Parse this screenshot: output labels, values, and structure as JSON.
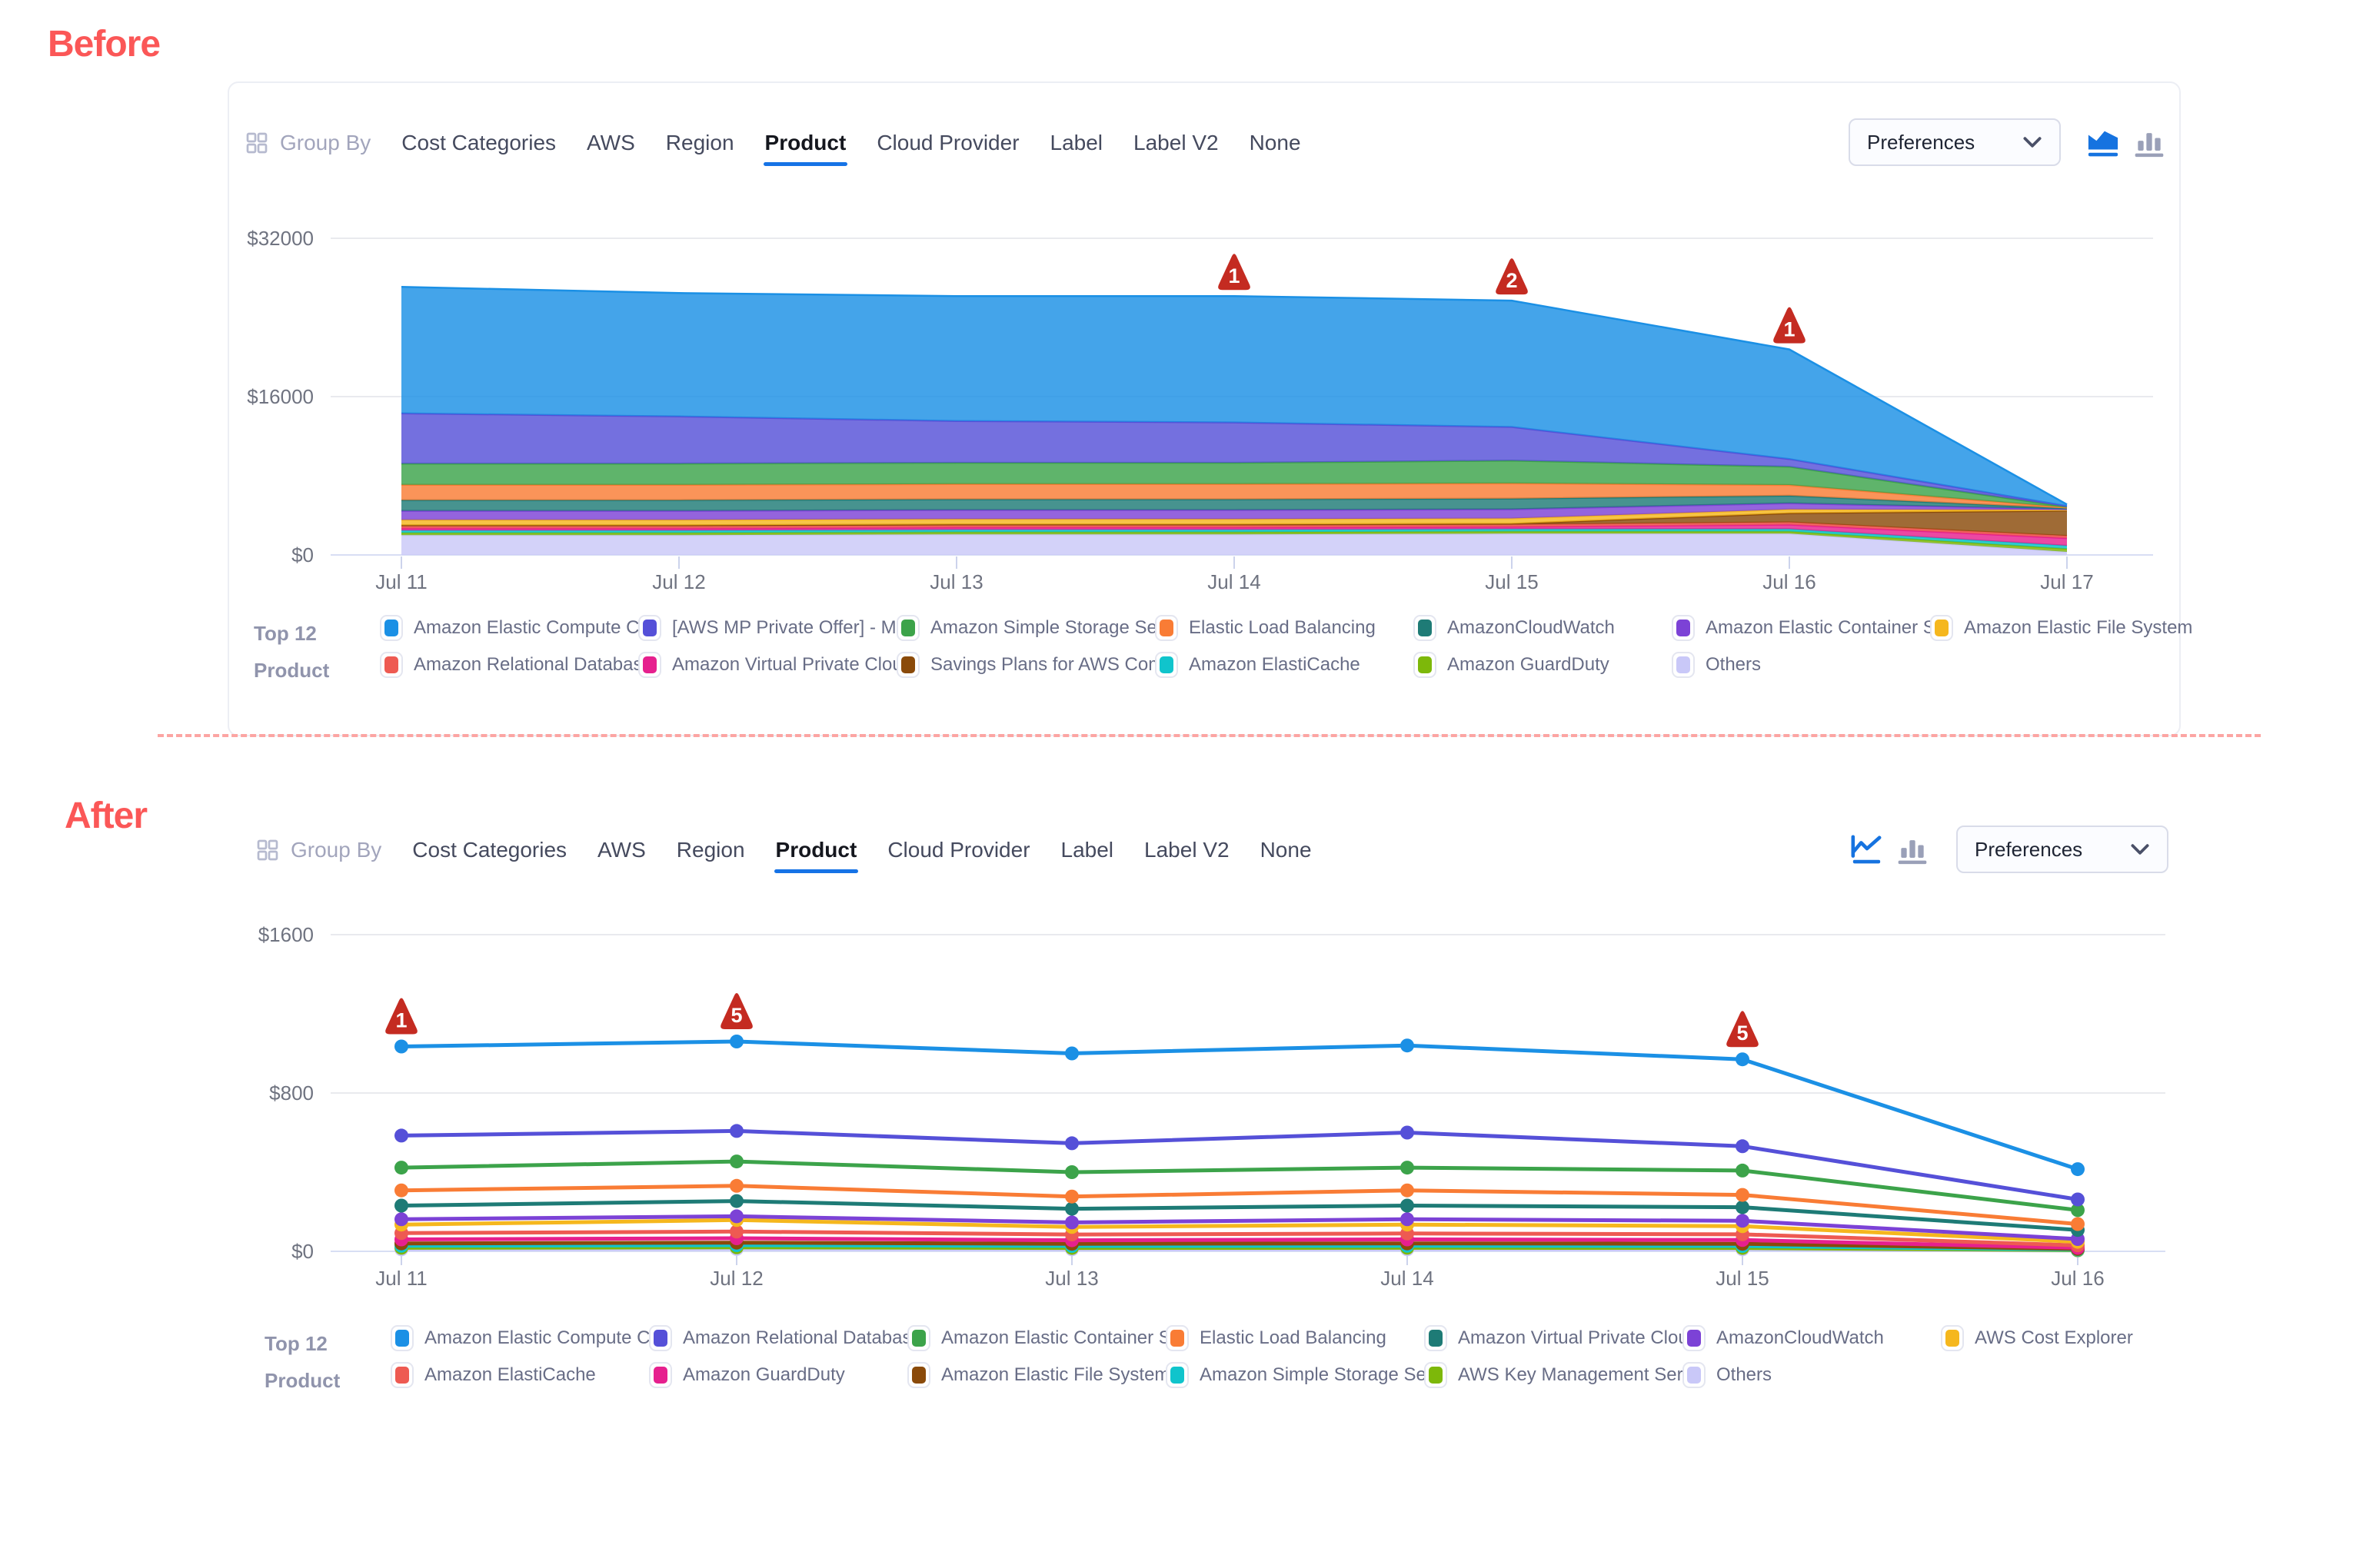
{
  "page": {
    "before_label": "Before",
    "after_label": "After",
    "accent_color": "#fb5757",
    "divider_color": "#fca5a3",
    "active_tab_underline_color": "#1673e6",
    "badge_color": "#c42b21"
  },
  "group_by": {
    "label": "Group By",
    "tabs": [
      "Cost Categories",
      "AWS",
      "Region",
      "Product",
      "Cloud Provider",
      "Label",
      "Label V2",
      "None"
    ],
    "active_tab": "Product"
  },
  "preferences_label": "Preferences",
  "legend_title": {
    "line1": "Top 12",
    "line2": "Product"
  },
  "before": {
    "chart_toggles": {
      "options": [
        "area-chart",
        "bar-chart"
      ],
      "active": "area-chart"
    },
    "legend": [
      {
        "label": "Amazon Elastic Compute Cl...",
        "color": "#1b90e5"
      },
      {
        "label": "[AWS MP Private Offer] - M...",
        "color": "#5550d8"
      },
      {
        "label": "Amazon Simple Storage Ser...",
        "color": "#3ca34a"
      },
      {
        "label": "Elastic Load Balancing",
        "color": "#f97c35"
      },
      {
        "label": "AmazonCloudWatch",
        "color": "#1e7b76"
      },
      {
        "label": "Amazon Elastic Container S...",
        "color": "#7c42d6"
      },
      {
        "label": "Amazon Elastic File System",
        "color": "#f5b71e"
      },
      {
        "label": "Amazon Relational Databas...",
        "color": "#ee5a52"
      },
      {
        "label": "Amazon Virtual Private Cloud",
        "color": "#e6208e"
      },
      {
        "label": "Savings Plans for AWS Com...",
        "color": "#8a4a0a"
      },
      {
        "label": "Amazon ElastiCache",
        "color": "#10c4cc"
      },
      {
        "label": "Amazon GuardDuty",
        "color": "#7db80a"
      },
      {
        "label": "Others",
        "color": "#c9c8f8"
      }
    ],
    "chart_data": {
      "type": "area",
      "stacked": true,
      "x": [
        "Jul 11",
        "Jul 12",
        "Jul 13",
        "Jul 14",
        "Jul 15",
        "Jul 16",
        "Jul 17"
      ],
      "yticks": [
        {
          "label": "$0",
          "value": 0
        },
        {
          "label": "$16000",
          "value": 16000
        },
        {
          "label": "$32000",
          "value": 32000
        }
      ],
      "ylim": [
        0,
        32000
      ],
      "grid": true,
      "legend_position": "bottom",
      "series_bottom_to_top": [
        {
          "name": "Others",
          "color": "#c9c8f8",
          "values": [
            2000,
            2000,
            2080,
            2080,
            2150,
            2150,
            310
          ]
        },
        {
          "name": "Amazon GuardDuty",
          "color": "#7db80a",
          "values": [
            230,
            230,
            230,
            230,
            230,
            230,
            310
          ]
        },
        {
          "name": "Amazon ElastiCache",
          "color": "#10c4cc",
          "values": [
            230,
            230,
            230,
            230,
            230,
            230,
            310
          ]
        },
        {
          "name": "Amazon Virtual Private Cloud",
          "color": "#e6208e",
          "values": [
            230,
            230,
            230,
            230,
            230,
            460,
            770
          ]
        },
        {
          "name": "Amazon Relational Databas...",
          "color": "#ee5a52",
          "values": [
            230,
            230,
            230,
            230,
            230,
            230,
            230
          ]
        },
        {
          "name": "Savings Plans for AWS Com...",
          "color": "#8a4a0a",
          "values": [
            80,
            80,
            80,
            80,
            80,
            920,
            2540
          ]
        },
        {
          "name": "Amazon Elastic File System",
          "color": "#f5b71e",
          "values": [
            540,
            540,
            540,
            540,
            540,
            380,
            80
          ]
        },
        {
          "name": "Amazon Elastic Container S...",
          "color": "#7c42d6",
          "values": [
            920,
            920,
            920,
            920,
            920,
            620,
            80
          ]
        },
        {
          "name": "AmazonCloudWatch",
          "color": "#1e7b76",
          "values": [
            1080,
            1080,
            1080,
            1080,
            1080,
            770,
            80
          ]
        },
        {
          "name": "Elastic Load Balancing",
          "color": "#f97c35",
          "values": [
            1540,
            1540,
            1540,
            1540,
            1540,
            1080,
            80
          ]
        },
        {
          "name": "Amazon Simple Storage Ser...",
          "color": "#3ca34a",
          "values": [
            2150,
            2150,
            2150,
            2150,
            2310,
            1850,
            80
          ]
        },
        {
          "name": "[AWS MP Private Offer] - M...",
          "color": "#5550d8",
          "values": [
            5080,
            4770,
            4230,
            4080,
            3390,
            770,
            80
          ]
        },
        {
          "name": "Amazon Elastic Compute Cl...",
          "color": "#1b90e5",
          "values": [
            12770,
            12460,
            12620,
            12770,
            12770,
            11080,
            150
          ]
        }
      ],
      "annotations": [
        {
          "x": "Jul 14",
          "badge": "1",
          "series": "Amazon Elastic Compute Cl..."
        },
        {
          "x": "Jul 15",
          "badge": "2",
          "series": "Amazon Elastic Compute Cl..."
        },
        {
          "x": "Jul 16",
          "badge": "1",
          "series": "Amazon Elastic Compute Cl..."
        }
      ]
    }
  },
  "after": {
    "chart_toggles": {
      "options": [
        "line-chart",
        "bar-chart"
      ],
      "active": "line-chart"
    },
    "legend": [
      {
        "label": "Amazon Elastic Compute Cl...",
        "color": "#1b90e5"
      },
      {
        "label": "Amazon Relational Databas...",
        "color": "#5550d8"
      },
      {
        "label": "Amazon Elastic Container S...",
        "color": "#3ca34a"
      },
      {
        "label": "Elastic Load Balancing",
        "color": "#f97c35"
      },
      {
        "label": "Amazon Virtual Private Cloud",
        "color": "#1e7b76"
      },
      {
        "label": "AmazonCloudWatch",
        "color": "#7c42d6"
      },
      {
        "label": "AWS Cost Explorer",
        "color": "#f5b71e"
      },
      {
        "label": "Amazon ElastiCache",
        "color": "#ee5a52"
      },
      {
        "label": "Amazon GuardDuty",
        "color": "#e6208e"
      },
      {
        "label": "Amazon Elastic File System",
        "color": "#8a4a0a"
      },
      {
        "label": "Amazon Simple Storage Ser...",
        "color": "#10c4cc"
      },
      {
        "label": "AWS Key Management Serv...",
        "color": "#7db80a"
      },
      {
        "label": "Others",
        "color": "#c9c8f8"
      }
    ],
    "chart_data": {
      "type": "line",
      "stacked": false,
      "x": [
        "Jul 11",
        "Jul 12",
        "Jul 13",
        "Jul 14",
        "Jul 15",
        "Jul 16"
      ],
      "yticks": [
        {
          "label": "$0",
          "value": 0
        },
        {
          "label": "$800",
          "value": 800
        },
        {
          "label": "$1600",
          "value": 1600
        }
      ],
      "ylim": [
        0,
        1600
      ],
      "grid": true,
      "legend_position": "bottom",
      "series_bottom_to_top": [
        {
          "name": "Others",
          "color": "#c9c8f8",
          "values": [
            10,
            12,
            10,
            10,
            10,
            4
          ]
        },
        {
          "name": "AWS Key Management Serv...",
          "color": "#7db80a",
          "values": [
            18,
            20,
            17,
            18,
            17,
            6
          ]
        },
        {
          "name": "Amazon Simple Storage Ser...",
          "color": "#10c4cc",
          "values": [
            28,
            31,
            27,
            28,
            27,
            9
          ]
        },
        {
          "name": "Amazon Elastic File System",
          "color": "#8a4a0a",
          "values": [
            40,
            44,
            38,
            40,
            38,
            12
          ]
        },
        {
          "name": "Amazon GuardDuty",
          "color": "#e6208e",
          "values": [
            60,
            66,
            56,
            60,
            57,
            18
          ]
        },
        {
          "name": "Amazon ElastiCache",
          "color": "#ee5a52",
          "values": [
            92,
            100,
            85,
            90,
            86,
            30
          ]
        },
        {
          "name": "AWS Cost Explorer",
          "color": "#f5b71e",
          "values": [
            135,
            158,
            123,
            135,
            127,
            48
          ]
        },
        {
          "name": "AmazonCloudWatch",
          "color": "#7c42d6",
          "values": [
            162,
            177,
            146,
            162,
            154,
            62
          ]
        },
        {
          "name": "Amazon Virtual Private Cloud",
          "color": "#1e7b76",
          "values": [
            231,
            254,
            215,
            231,
            223,
            108
          ]
        },
        {
          "name": "Elastic Load Balancing",
          "color": "#f97c35",
          "values": [
            308,
            331,
            277,
            308,
            285,
            138
          ]
        },
        {
          "name": "Amazon Elastic Container S...",
          "color": "#3ca34a",
          "values": [
            423,
            454,
            400,
            423,
            408,
            208
          ]
        },
        {
          "name": "Amazon Relational Databas...",
          "color": "#5550d8",
          "values": [
            585,
            608,
            546,
            600,
            531,
            262
          ]
        },
        {
          "name": "Amazon Elastic Compute Cl...",
          "color": "#1b90e5",
          "values": [
            1035,
            1060,
            1000,
            1040,
            970,
            415
          ]
        }
      ],
      "annotations": [
        {
          "x": "Jul 11",
          "badge": "1",
          "series": "Amazon Elastic Compute Cl..."
        },
        {
          "x": "Jul 12",
          "badge": "5",
          "series": "Amazon Elastic Compute Cl..."
        },
        {
          "x": "Jul 15",
          "badge": "5",
          "series": "Amazon Elastic Compute Cl..."
        }
      ]
    }
  }
}
